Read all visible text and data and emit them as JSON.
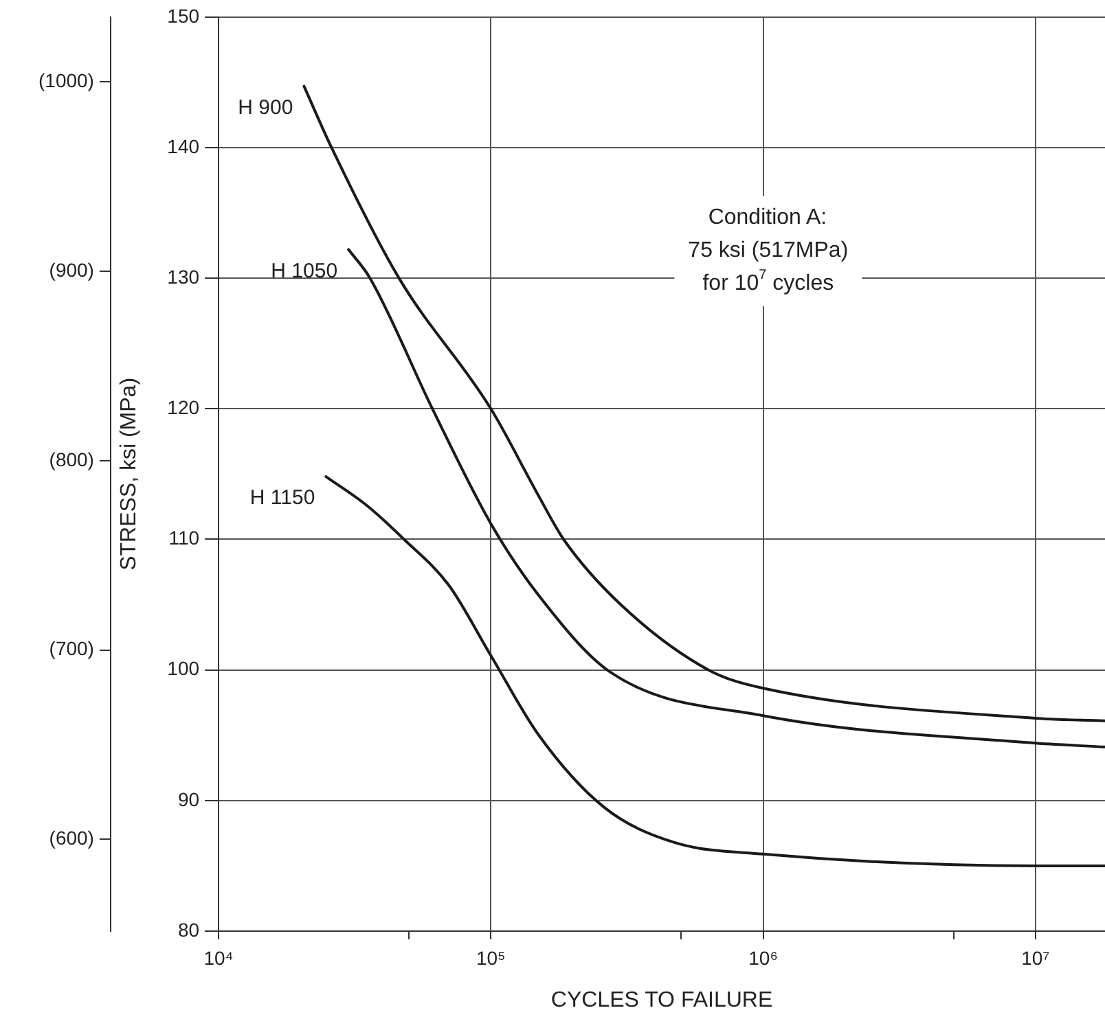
{
  "chart_data": {
    "type": "line",
    "xlabel": "CYCLES TO FAILURE",
    "ylabel": "STRESS, ksi (MPa)",
    "annotations": [
      "Condition A:\n75 ksi (517MPa)\nfor 10$^{7}$ cycles"
    ],
    "log": "x",
    "grid": true,
    "legend": false,
    "marker": "none",
    "line_style": "solid",
    "xlim": [
      10000,
      18000000
    ],
    "xticks": [
      {
        "value": 10000,
        "label": "10⁴"
      },
      {
        "value": 50000,
        "label": null
      },
      {
        "value": 100000,
        "label": "10⁵"
      },
      {
        "value": 500000,
        "label": null
      },
      {
        "value": 1000000,
        "label": "10⁶"
      },
      {
        "value": 5000000,
        "label": null
      },
      {
        "value": 10000000,
        "label": "10⁷"
      }
    ],
    "ylim": [
      80,
      150
    ],
    "yticks": [
      80,
      90,
      100,
      110,
      120,
      130,
      140,
      150
    ],
    "y2lim": [
      551.6,
      1034.2
    ],
    "y2ticks": [
      {
        "value": 600,
        "label": "(600)"
      },
      {
        "value": 700,
        "label": "(700)"
      },
      {
        "value": 800,
        "label": "(800)"
      },
      {
        "value": 900,
        "label": "(900)"
      },
      {
        "value": 1000,
        "label": "(1000)"
      }
    ],
    "series": [
      {
        "name": "H 900",
        "color": "#1a1a1a",
        "x": [
          20600,
          26000,
          46000,
          100000,
          150000,
          185000,
          300000,
          630000,
          1000000,
          10000000,
          18000000
        ],
        "values": [
          144.7,
          140,
          130,
          120,
          113.3,
          110,
          105,
          100,
          98.6,
          96.3,
          96.1
        ]
      },
      {
        "name": "H 1050",
        "color": "#1a1a1a",
        "x": [
          30000,
          36000,
          61000,
          100000,
          150000,
          276000,
          1000000,
          10000000,
          18000000
        ],
        "values": [
          132.2,
          130,
          120,
          111.2,
          105.7,
          99.8,
          96.5,
          94.4,
          94.1
        ]
      },
      {
        "name": "H 1150",
        "color": "#1a1a1a",
        "x": [
          24800,
          35000,
          48000,
          70000,
          100000,
          150000,
          260000,
          470000,
          1000000,
          10000000,
          18000000
        ],
        "values": [
          114.8,
          112.6,
          110,
          106.5,
          101.1,
          95,
          89.5,
          86.8,
          85.9,
          85,
          85
        ]
      }
    ]
  }
}
